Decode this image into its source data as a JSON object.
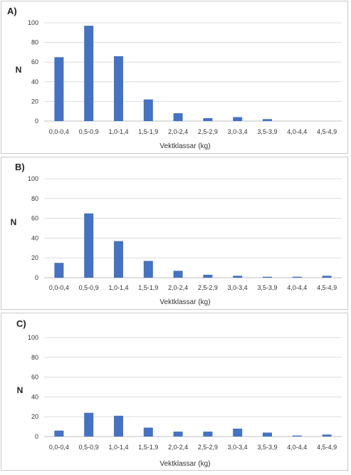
{
  "chart_data": [
    {
      "type": "bar",
      "panel_label": "A)",
      "ylabel": "N",
      "xlabel": "Vektklassar (kg)",
      "ylim": [
        0,
        100
      ],
      "yticks": [
        0,
        20,
        40,
        60,
        80,
        100
      ],
      "grid": true,
      "color": "#4472c4",
      "categories": [
        "0,0-0,4",
        "0,5-0,9",
        "1,0-1,4",
        "1,5-1,9",
        "2,0-2,4",
        "2,5-2,9",
        "3,0-3,4",
        "3,5-3,9",
        "4,0-4,4",
        "4,5-4,9"
      ],
      "values": [
        65,
        97,
        66,
        22,
        8,
        3,
        4,
        2,
        0,
        0
      ]
    },
    {
      "type": "bar",
      "panel_label": "B)",
      "ylabel": "N",
      "xlabel": "Vektklassar (kg)",
      "ylim": [
        0,
        100
      ],
      "yticks": [
        0,
        20,
        40,
        60,
        80,
        100
      ],
      "grid": true,
      "color": "#4472c4",
      "categories": [
        "0,0-0,4",
        "0,5-0,9",
        "1,0-1,4",
        "1,5-1,9",
        "2,0-2,4",
        "2,5-2,9",
        "3,0-3,4",
        "3,5-3,9",
        "4,0-4,4",
        "4,5-4,9"
      ],
      "values": [
        15,
        65,
        37,
        17,
        7,
        3,
        2,
        1,
        1,
        2
      ]
    },
    {
      "type": "bar",
      "panel_label": "C)",
      "ylabel": "N",
      "xlabel": "Vektklassar (kg)",
      "ylim": [
        0,
        100
      ],
      "yticks": [
        0,
        20,
        40,
        60,
        80,
        100
      ],
      "grid": true,
      "color": "#4472c4",
      "categories": [
        "0,0-0,4",
        "0,5-0,9",
        "1,0-1,4",
        "1,5-1,9",
        "2,0-2,4",
        "2,5-2,9",
        "3,0-3,4",
        "3,5-3,9",
        "4,0-4,4",
        "4,5-4,9"
      ],
      "values": [
        6,
        24,
        21,
        9,
        5,
        5,
        8,
        4,
        1,
        2
      ]
    }
  ]
}
